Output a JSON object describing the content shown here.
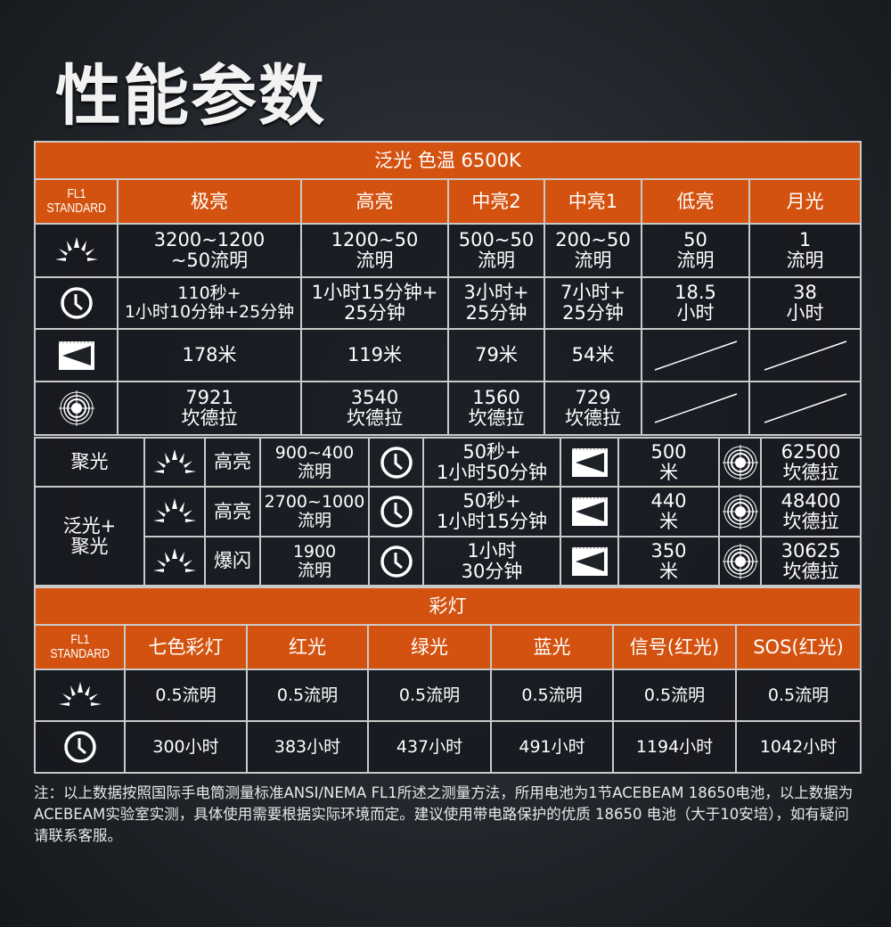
{
  "title": "性能参数",
  "flood": {
    "header": "泛光 色温 6500K",
    "standard": [
      "FL1",
      "STANDARD"
    ],
    "modes": [
      "极亮",
      "高亮",
      "中亮2",
      "中亮1",
      "低亮",
      "月光"
    ],
    "rows": [
      {
        "icon": "lumen-icon",
        "cells": [
          [
            "3200~1200",
            "~50流明"
          ],
          [
            "1200~50",
            "流明"
          ],
          [
            "500~50",
            "流明"
          ],
          [
            "200~50",
            "流明"
          ],
          [
            "50",
            "流明"
          ],
          [
            "1",
            "流明"
          ]
        ]
      },
      {
        "icon": "clock-icon",
        "cells": [
          [
            "110秒+",
            "1小时10分钟+25分钟"
          ],
          [
            "1小时15分钟+",
            "25分钟"
          ],
          [
            "3小时+",
            "25分钟"
          ],
          [
            "7小时+",
            "25分钟"
          ],
          [
            "18.5",
            "小时"
          ],
          [
            "38",
            "小时"
          ]
        ]
      },
      {
        "icon": "throw-icon",
        "cells": [
          [
            "178米"
          ],
          [
            "119米"
          ],
          [
            "79米"
          ],
          [
            "54米"
          ],
          null,
          null
        ]
      },
      {
        "icon": "intensity-icon",
        "cells": [
          [
            "7921",
            "坎德拉"
          ],
          [
            "3540",
            "坎德拉"
          ],
          [
            "1560",
            "坎德拉"
          ],
          [
            "729",
            "坎德拉"
          ],
          null,
          null
        ]
      }
    ]
  },
  "spot": {
    "groups": [
      {
        "label": [
          "聚光"
        ],
        "rows": [
          {
            "mode": "高亮",
            "lumens": [
              "900~400",
              "流明"
            ],
            "runtime": [
              "50秒+",
              "1小时50分钟"
            ],
            "throw": [
              "500",
              "米"
            ],
            "intensity": [
              "62500",
              "坎德拉"
            ]
          }
        ]
      },
      {
        "label": [
          "泛光+",
          "聚光"
        ],
        "rows": [
          {
            "mode": "高亮",
            "lumens": [
              "2700~1000",
              "流明"
            ],
            "runtime": [
              "50秒+",
              "1小时15分钟"
            ],
            "throw": [
              "440",
              "米"
            ],
            "intensity": [
              "48400",
              "坎德拉"
            ]
          },
          {
            "mode": "爆闪",
            "lumens": [
              "1900",
              "流明"
            ],
            "runtime": [
              "1小时",
              "30分钟"
            ],
            "throw": [
              "350",
              "米"
            ],
            "intensity": [
              "30625",
              "坎德拉"
            ]
          }
        ]
      }
    ]
  },
  "color": {
    "header": "彩灯",
    "standard": [
      "FL1",
      "STANDARD"
    ],
    "modes": [
      "七色彩灯",
      "红光",
      "绿光",
      "蓝光",
      "信号(红光)",
      "SOS(红光)"
    ],
    "rows": [
      {
        "icon": "lumen-icon",
        "cells": [
          "0.5流明",
          "0.5流明",
          "0.5流明",
          "0.5流明",
          "0.5流明",
          "0.5流明"
        ]
      },
      {
        "icon": "clock-icon",
        "cells": [
          "300小时",
          "383小时",
          "437小时",
          "491小时",
          "1194小时",
          "1042小时"
        ]
      }
    ]
  },
  "note": "注：以上数据按照国际手电筒测量标准ANSI/NEMA FL1所述之测量方法，所用电池为1节ACEBEAM 18650电池，以上数据为ACEBEAM实验室实测，具体使用需要根据实际环境而定。建议使用带电路保护的优质 18650 电池（大于10安培），如有疑问请联系客服。",
  "colors": {
    "accent": "#d4520f",
    "cell": "#1e2228",
    "border": "#c9c9c9"
  }
}
